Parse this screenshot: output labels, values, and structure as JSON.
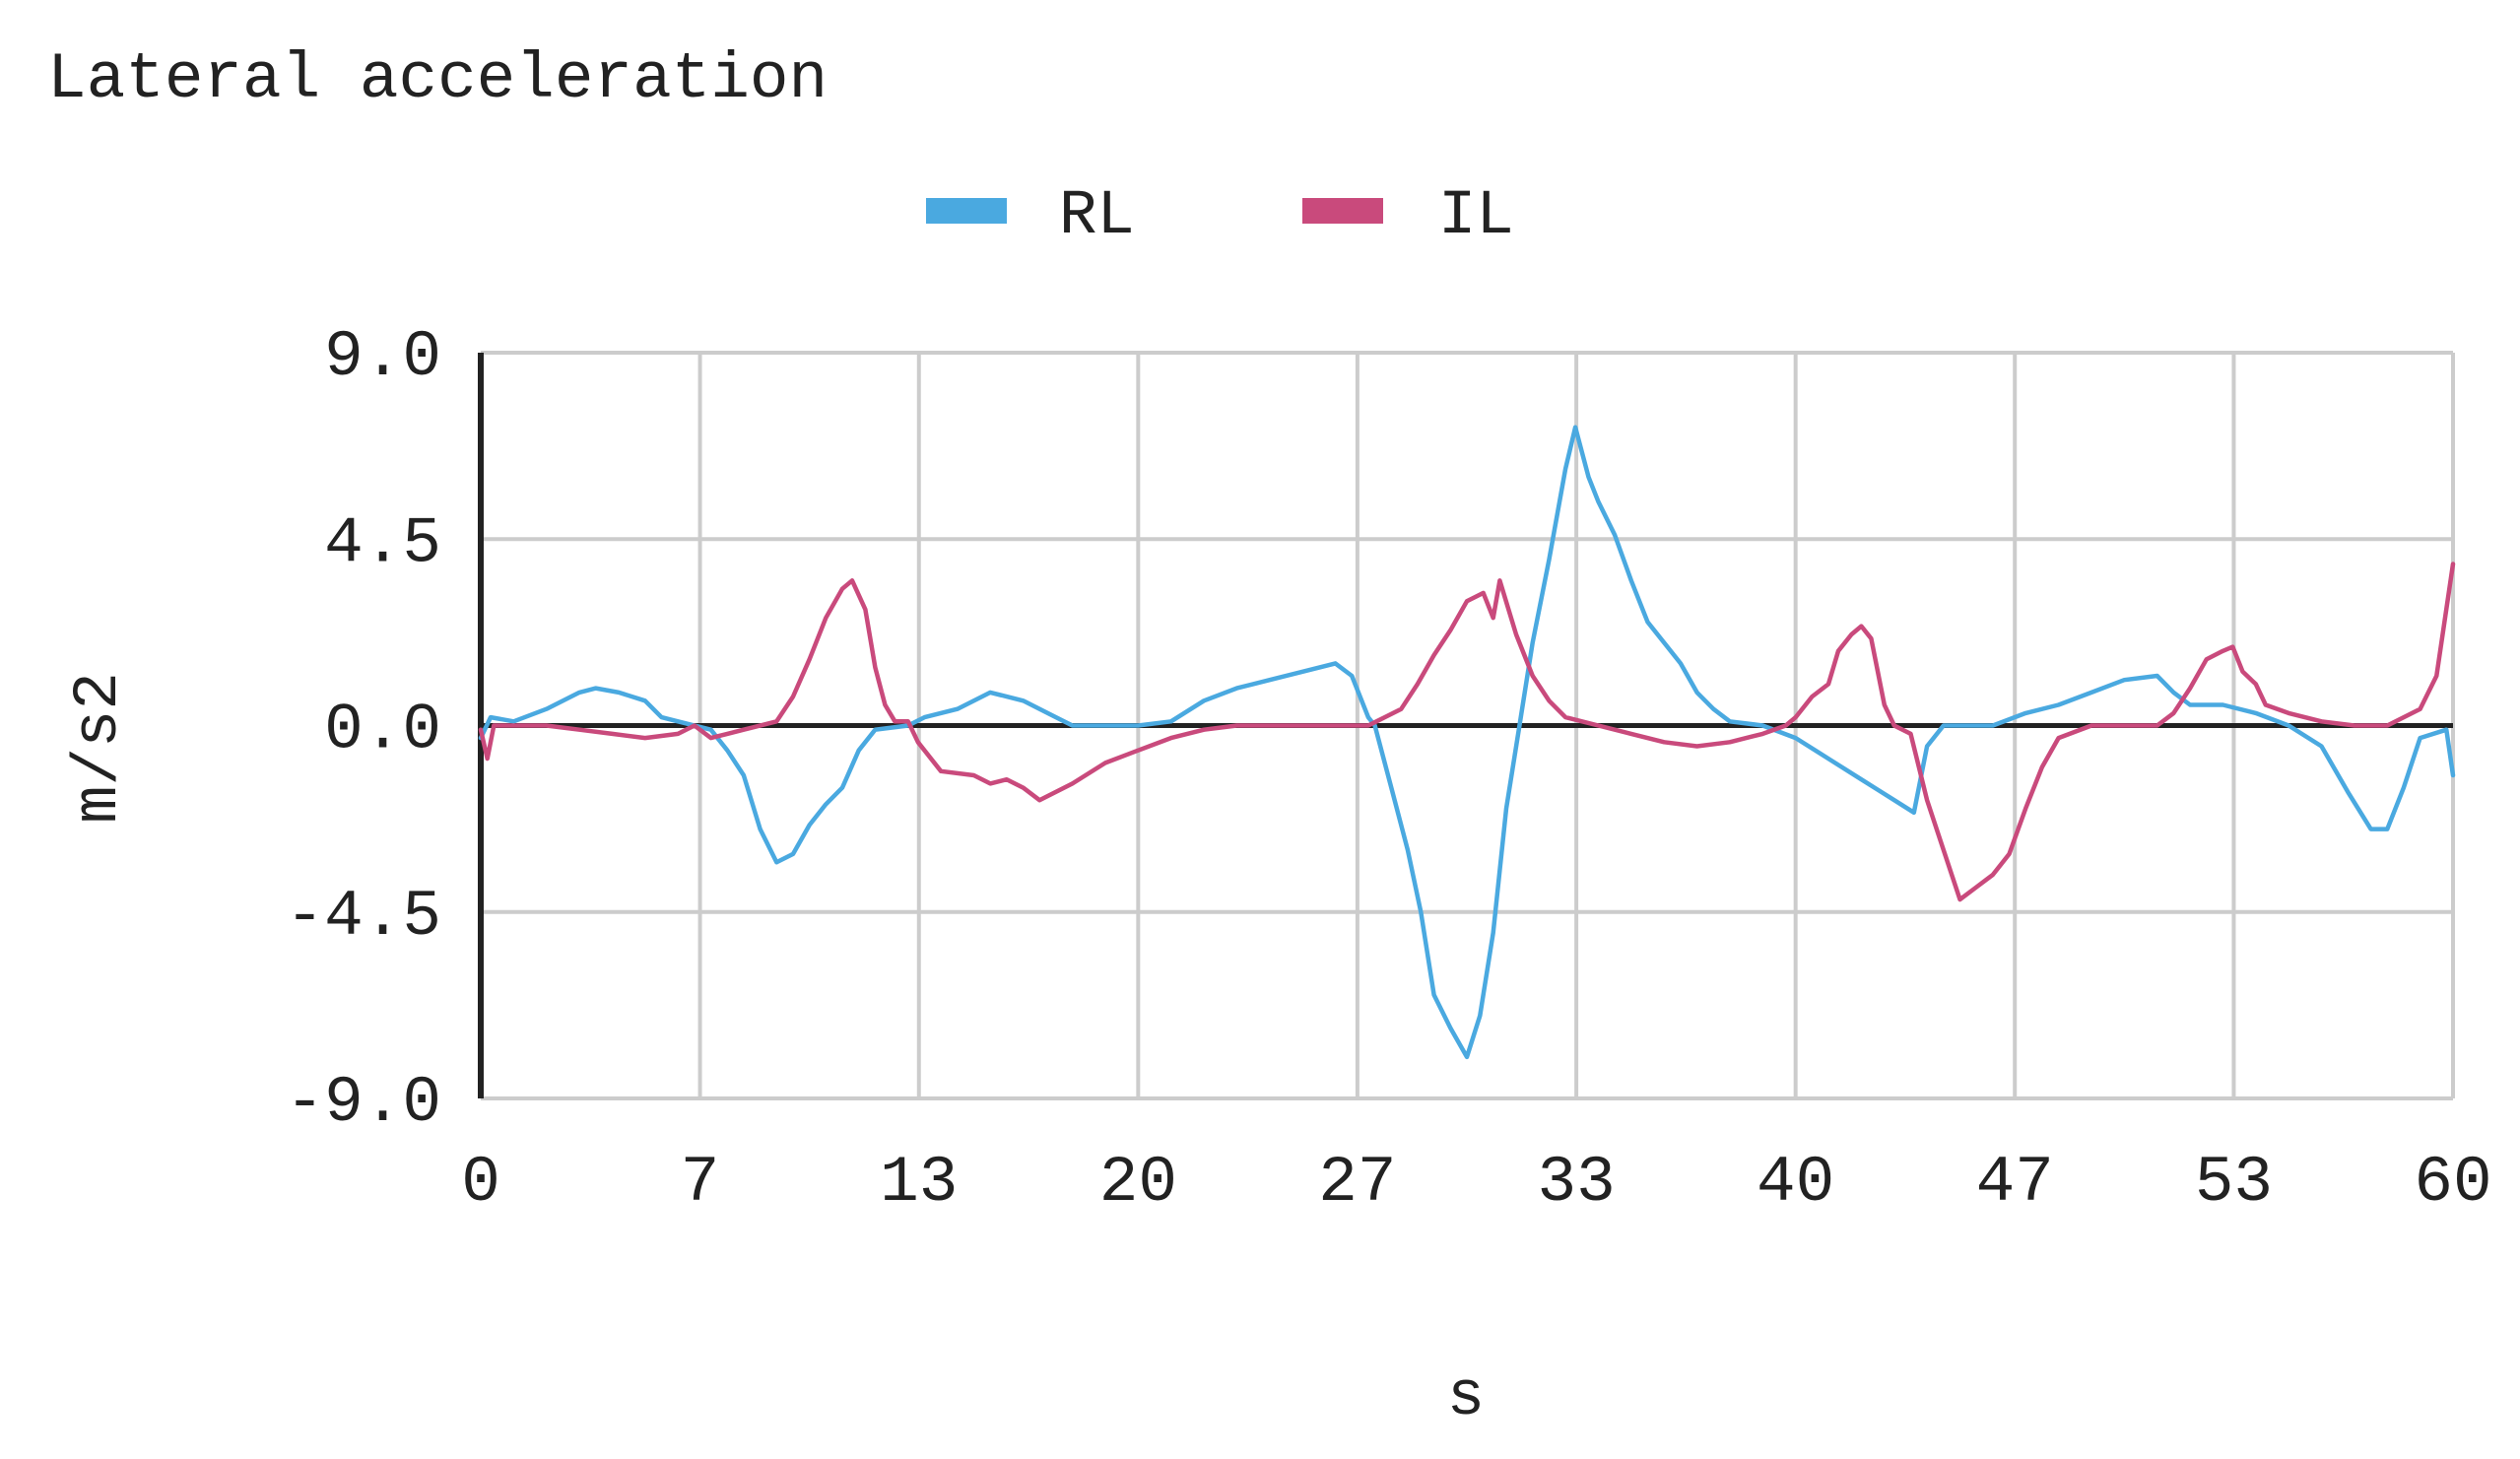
{
  "chart_data": {
    "type": "line",
    "title": "Lateral acceleration",
    "xlabel": "s",
    "ylabel": "m/s2",
    "xlim": [
      0,
      60
    ],
    "ylim": [
      -9.0,
      9.0
    ],
    "x_ticks": [
      "0",
      "7",
      "13",
      "20",
      "27",
      "33",
      "40",
      "47",
      "53",
      "60"
    ],
    "x_tick_values": [
      0,
      6.67,
      13.33,
      20,
      26.67,
      33.33,
      40,
      46.67,
      53.33,
      60
    ],
    "y_ticks": [
      "9.0",
      "4.5",
      "0.0",
      "-4.5",
      "-9.0"
    ],
    "y_tick_values": [
      9.0,
      4.5,
      0.0,
      -4.5,
      -9.0
    ],
    "grid": true,
    "legend_position": "top-center",
    "series": [
      {
        "name": "RL",
        "color": "#4aa9e0",
        "points": [
          [
            0,
            -0.3
          ],
          [
            0.3,
            0.2
          ],
          [
            1,
            0.1
          ],
          [
            2,
            0.4
          ],
          [
            3,
            0.8
          ],
          [
            3.5,
            0.9
          ],
          [
            4.2,
            0.8
          ],
          [
            5,
            0.6
          ],
          [
            5.5,
            0.2
          ],
          [
            6,
            0.1
          ],
          [
            7,
            -0.1
          ],
          [
            7.5,
            -0.6
          ],
          [
            8,
            -1.2
          ],
          [
            8.5,
            -2.5
          ],
          [
            9,
            -3.3
          ],
          [
            9.5,
            -3.1
          ],
          [
            10,
            -2.4
          ],
          [
            10.5,
            -1.9
          ],
          [
            11,
            -1.5
          ],
          [
            11.5,
            -0.6
          ],
          [
            12,
            -0.1
          ],
          [
            13,
            0
          ],
          [
            13.5,
            0.2
          ],
          [
            14.5,
            0.4
          ],
          [
            15.5,
            0.8
          ],
          [
            16.5,
            0.6
          ],
          [
            17.5,
            0.2
          ],
          [
            18,
            0
          ],
          [
            20,
            0
          ],
          [
            21,
            0.1
          ],
          [
            22,
            0.6
          ],
          [
            23,
            0.9
          ],
          [
            24,
            1.1
          ],
          [
            25,
            1.3
          ],
          [
            26,
            1.5
          ],
          [
            26.5,
            1.2
          ],
          [
            27,
            0.2
          ],
          [
            27.2,
            0
          ],
          [
            27.7,
            -1.5
          ],
          [
            28.2,
            -3
          ],
          [
            28.6,
            -4.5
          ],
          [
            29,
            -6.5
          ],
          [
            29.5,
            -7.3
          ],
          [
            30,
            -8
          ],
          [
            30.4,
            -7
          ],
          [
            30.8,
            -5
          ],
          [
            31.2,
            -2
          ],
          [
            31.6,
            0
          ],
          [
            32,
            2
          ],
          [
            32.5,
            4
          ],
          [
            33,
            6.2
          ],
          [
            33.3,
            7.2
          ],
          [
            33.7,
            6
          ],
          [
            34,
            5.4
          ],
          [
            34.5,
            4.6
          ],
          [
            35,
            3.5
          ],
          [
            35.5,
            2.5
          ],
          [
            36,
            2
          ],
          [
            36.5,
            1.5
          ],
          [
            37,
            0.8
          ],
          [
            37.5,
            0.4
          ],
          [
            38,
            0.1
          ],
          [
            39,
            0
          ],
          [
            40,
            -0.3
          ],
          [
            41,
            -0.8
          ],
          [
            42,
            -1.3
          ],
          [
            43,
            -1.8
          ],
          [
            43.6,
            -2.1
          ],
          [
            44,
            -0.5
          ],
          [
            44.5,
            0
          ],
          [
            46,
            0
          ],
          [
            47,
            0.3
          ],
          [
            48,
            0.5
          ],
          [
            49,
            0.8
          ],
          [
            50,
            1.1
          ],
          [
            51,
            1.2
          ],
          [
            51.5,
            0.8
          ],
          [
            52,
            0.5
          ],
          [
            53,
            0.5
          ],
          [
            54,
            0.3
          ],
          [
            55,
            0
          ],
          [
            56,
            -0.5
          ],
          [
            56.8,
            -1.6
          ],
          [
            57.5,
            -2.5
          ],
          [
            58,
            -2.5
          ],
          [
            58.5,
            -1.5
          ],
          [
            59,
            -0.3
          ],
          [
            59.8,
            -0.1
          ],
          [
            60,
            -1.2
          ]
        ]
      },
      {
        "name": "IL",
        "color": "#c94a7c",
        "points": [
          [
            0,
            -0.1
          ],
          [
            0.2,
            -0.8
          ],
          [
            0.4,
            0
          ],
          [
            1,
            0
          ],
          [
            2,
            0
          ],
          [
            3,
            -0.1
          ],
          [
            4,
            -0.2
          ],
          [
            5,
            -0.3
          ],
          [
            6,
            -0.2
          ],
          [
            6.5,
            0
          ],
          [
            7,
            -0.3
          ],
          [
            7.5,
            -0.2
          ],
          [
            8,
            -0.1
          ],
          [
            9,
            0.1
          ],
          [
            9.5,
            0.7
          ],
          [
            10,
            1.6
          ],
          [
            10.5,
            2.6
          ],
          [
            11,
            3.3
          ],
          [
            11.3,
            3.5
          ],
          [
            11.7,
            2.8
          ],
          [
            12,
            1.4
          ],
          [
            12.3,
            0.5
          ],
          [
            12.6,
            0.1
          ],
          [
            13,
            0.1
          ],
          [
            13.3,
            -0.4
          ],
          [
            14,
            -1.1
          ],
          [
            15,
            -1.2
          ],
          [
            15.5,
            -1.4
          ],
          [
            16,
            -1.3
          ],
          [
            16.5,
            -1.5
          ],
          [
            17,
            -1.8
          ],
          [
            18,
            -1.4
          ],
          [
            19,
            -0.9
          ],
          [
            20,
            -0.6
          ],
          [
            21,
            -0.3
          ],
          [
            22,
            -0.1
          ],
          [
            23,
            0
          ],
          [
            26,
            0
          ],
          [
            27,
            0
          ],
          [
            27.5,
            0.2
          ],
          [
            28,
            0.4
          ],
          [
            28.5,
            1
          ],
          [
            29,
            1.7
          ],
          [
            29.5,
            2.3
          ],
          [
            30,
            3
          ],
          [
            30.5,
            3.2
          ],
          [
            30.8,
            2.6
          ],
          [
            31,
            3.5
          ],
          [
            31.5,
            2.2
          ],
          [
            32,
            1.2
          ],
          [
            32.5,
            0.6
          ],
          [
            33,
            0.2
          ],
          [
            34,
            0
          ],
          [
            35,
            -0.2
          ],
          [
            36,
            -0.4
          ],
          [
            37,
            -0.5
          ],
          [
            38,
            -0.4
          ],
          [
            39,
            -0.2
          ],
          [
            39.7,
            0
          ],
          [
            40,
            0.2
          ],
          [
            40.5,
            0.7
          ],
          [
            41,
            1
          ],
          [
            41.3,
            1.8
          ],
          [
            41.7,
            2.2
          ],
          [
            42,
            2.4
          ],
          [
            42.3,
            2.1
          ],
          [
            42.7,
            0.5
          ],
          [
            43,
            0
          ],
          [
            43.5,
            -0.2
          ],
          [
            44,
            -1.8
          ],
          [
            44.5,
            -3
          ],
          [
            45,
            -4.2
          ],
          [
            45.5,
            -3.9
          ],
          [
            46,
            -3.6
          ],
          [
            46.5,
            -3.1
          ],
          [
            47,
            -2
          ],
          [
            47.5,
            -1
          ],
          [
            48,
            -0.3
          ],
          [
            49,
            0
          ],
          [
            51,
            0
          ],
          [
            51.5,
            0.3
          ],
          [
            52,
            0.9
          ],
          [
            52.5,
            1.6
          ],
          [
            53,
            1.8
          ],
          [
            53.3,
            1.9
          ],
          [
            53.6,
            1.3
          ],
          [
            54,
            1
          ],
          [
            54.3,
            0.5
          ],
          [
            55,
            0.3
          ],
          [
            56,
            0.1
          ],
          [
            57,
            0
          ],
          [
            58,
            0
          ],
          [
            59,
            0.4
          ],
          [
            59.5,
            1.2
          ],
          [
            60,
            3.9
          ]
        ]
      }
    ]
  }
}
